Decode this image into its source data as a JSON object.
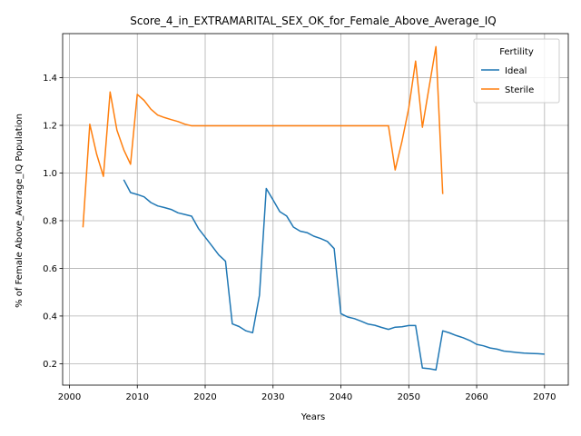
{
  "chart_data": {
    "type": "line",
    "title": "Score_4_in_EXTRAMARITAL_SEX_OK_for_Female_Above_Average_IQ",
    "xlabel": "Years",
    "ylabel": "% of Female Above_Average_IQ Population",
    "xlim": [
      1999,
      2073.5
    ],
    "ylim": [
      0.11,
      1.585
    ],
    "xticks": [
      2000,
      2010,
      2020,
      2030,
      2040,
      2050,
      2060,
      2070
    ],
    "yticks": [
      0.2,
      0.4,
      0.6,
      0.8,
      1.0,
      1.2,
      1.4
    ],
    "xtick_labels": [
      "2000",
      "2010",
      "2020",
      "2030",
      "2040",
      "2050",
      "2060",
      "2070"
    ],
    "ytick_labels": [
      "0.2",
      "0.4",
      "0.6",
      "0.8",
      "1.0",
      "1.2",
      "1.4"
    ],
    "grid": true,
    "legend": {
      "title": "Fertility",
      "placement": "top-right"
    },
    "series": [
      {
        "name": "Ideal",
        "color": "#1f77b4",
        "x": [
          2008,
          2009,
          2010,
          2011,
          2012,
          2013,
          2014,
          2015,
          2016,
          2017,
          2018,
          2019,
          2020,
          2021,
          2022,
          2023,
          2024,
          2025,
          2026,
          2027,
          2028,
          2029,
          2030,
          2031,
          2032,
          2033,
          2034,
          2035,
          2036,
          2037,
          2038,
          2039,
          2040,
          2041,
          2042,
          2043,
          2044,
          2045,
          2046,
          2047,
          2048,
          2049,
          2050,
          2051,
          2052,
          2053,
          2054,
          2055,
          2056,
          2057,
          2058,
          2059,
          2060,
          2061,
          2062,
          2063,
          2064,
          2065,
          2066,
          2067,
          2068,
          2069,
          2070
        ],
        "y": [
          0.972,
          0.918,
          0.91,
          0.9,
          0.876,
          0.862,
          0.855,
          0.847,
          0.833,
          0.826,
          0.819,
          0.768,
          0.731,
          0.694,
          0.656,
          0.63,
          0.367,
          0.356,
          0.338,
          0.33,
          0.487,
          0.935,
          0.887,
          0.838,
          0.82,
          0.773,
          0.756,
          0.75,
          0.735,
          0.725,
          0.713,
          0.683,
          0.41,
          0.396,
          0.389,
          0.378,
          0.366,
          0.361,
          0.352,
          0.344,
          0.353,
          0.355,
          0.36,
          0.36,
          0.182,
          0.179,
          0.174,
          0.338,
          0.329,
          0.318,
          0.309,
          0.297,
          0.281,
          0.275,
          0.266,
          0.261,
          0.253,
          0.25,
          0.247,
          0.244,
          0.243,
          0.242,
          0.24
        ]
      },
      {
        "name": "Sterile",
        "color": "#ff7f0e",
        "x": [
          2002,
          2003,
          2004,
          2005,
          2006,
          2007,
          2008,
          2009,
          2010,
          2011,
          2012,
          2013,
          2014,
          2015,
          2016,
          2017,
          2018,
          2019,
          2020,
          2025,
          2030,
          2035,
          2040,
          2045,
          2047,
          2048,
          2049,
          2050,
          2051,
          2052,
          2053,
          2054,
          2055
        ],
        "y": [
          0.772,
          1.205,
          1.08,
          0.986,
          1.34,
          1.18,
          1.098,
          1.037,
          1.33,
          1.305,
          1.268,
          1.243,
          1.233,
          1.224,
          1.216,
          1.205,
          1.198,
          1.198,
          1.198,
          1.198,
          1.198,
          1.198,
          1.198,
          1.198,
          1.198,
          1.013,
          1.133,
          1.273,
          1.47,
          1.192,
          1.361,
          1.53,
          0.912
        ]
      }
    ]
  }
}
